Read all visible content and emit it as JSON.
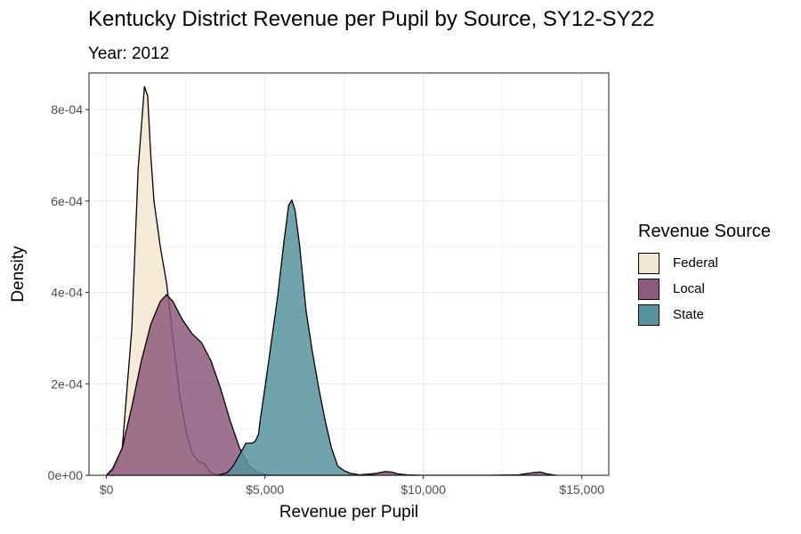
{
  "chart_data": {
    "type": "area",
    "title": "Kentucky District Revenue per Pupil by Source, SY12-SY22",
    "subtitle": "Year: 2012",
    "xlabel": "Revenue per Pupil",
    "ylabel": "Density",
    "xlim": [
      -550,
      15850
    ],
    "ylim": [
      0,
      0.00088
    ],
    "x_ticks": [
      0,
      5000,
      10000,
      15000
    ],
    "x_tick_labels": [
      "$0",
      "$5,000",
      "$10,000",
      "$15,000"
    ],
    "y_ticks": [
      0,
      0.0002,
      0.0004,
      0.0006,
      0.0008
    ],
    "y_tick_labels": [
      "0e+00",
      "2e-04",
      "4e-04",
      "6e-04",
      "8e-04"
    ],
    "grid": true,
    "legend": {
      "title": "Revenue Source",
      "position": "right",
      "entries": [
        "Federal",
        "Local",
        "State"
      ]
    },
    "colors": {
      "Federal": "#f3e6d1",
      "Local": "#8e5a7c",
      "State": "#56949f"
    },
    "series": [
      {
        "name": "Federal",
        "x": [
          0,
          200,
          500,
          800,
          1000,
          1200,
          1300,
          1400,
          1500,
          1700,
          1900,
          2100,
          2300,
          2500,
          2700,
          2900,
          3100,
          3300,
          3500,
          3700,
          4000,
          4200,
          4400,
          4600,
          5000
        ],
        "y": [
          0,
          1e-05,
          6e-05,
          0.00032,
          0.00067,
          0.00085,
          0.00083,
          0.0007,
          0.0006,
          0.0005,
          0.00042,
          0.0003,
          0.00018,
          0.0001,
          5e-05,
          3e-05,
          2.5e-05,
          5e-06,
          1e-06,
          2e-06,
          1e-05,
          1.5e-05,
          4e-06,
          1e-06,
          0
        ]
      },
      {
        "name": "Local",
        "x": [
          0,
          200,
          500,
          800,
          1100,
          1400,
          1700,
          1900,
          2100,
          2400,
          2700,
          3000,
          3300,
          3600,
          3900,
          4200,
          4500,
          4800,
          5100,
          5400,
          5700,
          6000,
          6300,
          6600,
          7000,
          7500,
          8000,
          8500,
          8800,
          9000,
          9200,
          9500,
          10000,
          11000,
          12000,
          13000,
          13500,
          13700,
          13900,
          14200
        ],
        "y": [
          0,
          1.5e-05,
          6e-05,
          0.00015,
          0.00025,
          0.00033,
          0.00038,
          0.000395,
          0.00038,
          0.00034,
          0.00031,
          0.00029,
          0.00025,
          0.00019,
          0.00012,
          6e-05,
          2e-05,
          5e-06,
          1e-06,
          0,
          0,
          0,
          0,
          0,
          0,
          0,
          1e-06,
          4e-06,
          8e-06,
          7e-06,
          3e-06,
          1e-06,
          0,
          0,
          0,
          1e-06,
          6e-06,
          7e-06,
          3e-06,
          0
        ]
      },
      {
        "name": "State",
        "x": [
          3500,
          3800,
          4000,
          4200,
          4400,
          4600,
          4700,
          4800,
          4850,
          5000,
          5200,
          5400,
          5600,
          5750,
          5850,
          5950,
          6100,
          6300,
          6500,
          6700,
          6900,
          7100,
          7300,
          7500,
          7700,
          8000,
          8500
        ],
        "y": [
          0,
          5e-06,
          2e-05,
          4.5e-05,
          7e-05,
          7e-05,
          7.5e-05,
          9e-05,
          0.00012,
          0.00019,
          0.00029,
          0.00039,
          0.00051,
          0.00059,
          0.000602,
          0.00058,
          0.0005,
          0.00036,
          0.00027,
          0.00019,
          0.00012,
          6e-05,
          2e-05,
          1e-05,
          4e-06,
          1e-06,
          0
        ]
      }
    ]
  }
}
